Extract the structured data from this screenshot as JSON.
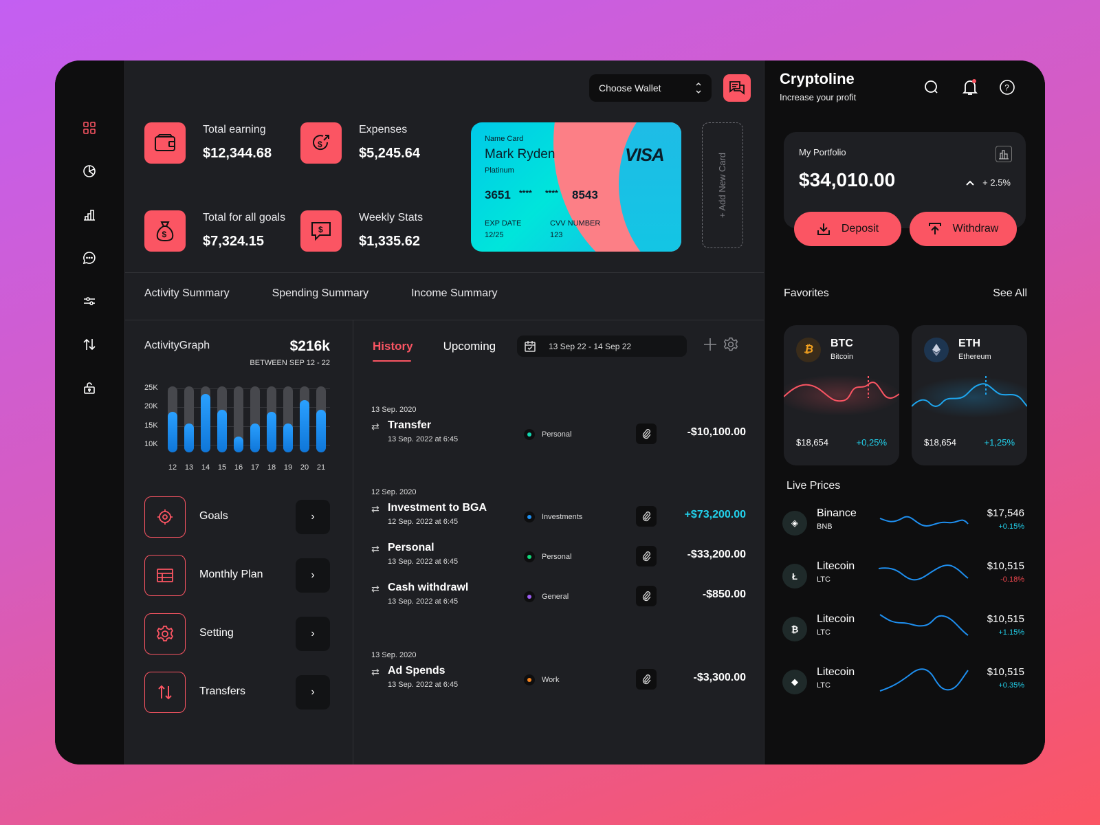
{
  "colors": {
    "accent": "#fb5563",
    "positive": "#22d3ee",
    "negative": "#f0474e",
    "bar": "#1e8ff0",
    "bar_track": "#47484d"
  },
  "topbar": {
    "wallet_select": "Choose Wallet"
  },
  "stats": [
    {
      "label": "Total earning",
      "value": "$12,344.68",
      "icon": "wallet-icon"
    },
    {
      "label": "Expenses",
      "value": "$5,245.64",
      "icon": "dollar-growth-icon"
    },
    {
      "label": "Total for all goals",
      "value": "$7,324.15",
      "icon": "money-bag-icon"
    },
    {
      "label": "Weekly Stats",
      "value": "$1,335.62",
      "icon": "dollar-chat-icon"
    }
  ],
  "card": {
    "name_label": "Name Card",
    "name": "Mark Ryden",
    "tier": "Platinum",
    "num1": "3651",
    "num2": "****",
    "num3": "****",
    "num4": "8543",
    "brand": "VISA",
    "exp_label": "EXP DATE",
    "exp": "12/25",
    "cvv_label": "CVV NUMBER",
    "cvv": "123"
  },
  "add_card": "+ Add New Card",
  "tabs": [
    "Activity Summary",
    "Spending Summary",
    "Income Summary"
  ],
  "activity": {
    "title": "ActivityGraph",
    "total": "$216k",
    "range": "BETWEEN SEP 12 - 22"
  },
  "chart_data": {
    "type": "bar",
    "title": "ActivityGraph",
    "categories": [
      "12",
      "13",
      "14",
      "15",
      "16",
      "17",
      "18",
      "19",
      "20",
      "21"
    ],
    "values": [
      18.5,
      15.5,
      23,
      19,
      12,
      15.5,
      18.5,
      15.5,
      21.5,
      19
    ],
    "unit": "K",
    "yticks": [
      "25K",
      "20K",
      "15K",
      "10K"
    ],
    "ylim": [
      8,
      25
    ],
    "xlabel": "",
    "ylabel": "",
    "grid": true
  },
  "menu": [
    {
      "label": "Goals",
      "icon": "target-icon"
    },
    {
      "label": "Monthly Plan",
      "icon": "table-icon"
    },
    {
      "label": "Setting",
      "icon": "gear-icon"
    },
    {
      "label": "Transfers",
      "icon": "transfer-arrows-icon"
    }
  ],
  "history": {
    "tabs": [
      "History",
      "Upcoming"
    ],
    "date_range": "13 Sep 22 - 14 Sep 22",
    "groups": [
      {
        "date": "13 Sep. 2020",
        "items": [
          {
            "title": "Transfer",
            "sub": "13  Sep. 2022 at 6:45",
            "category": "Personal",
            "dot": "#12d6b0",
            "amount": "-$10,100.00",
            "positive": false
          }
        ]
      },
      {
        "date": "12 Sep. 2020",
        "items": [
          {
            "title": "Investment to BGA",
            "sub": "12  Sep. 2022 at 6:45",
            "category": "Investments",
            "dot": "#1e8ff0",
            "amount": "+$73,200.00",
            "positive": true
          },
          {
            "title": "Personal",
            "sub": "13  Sep. 2022 at 6:45",
            "category": "Personal",
            "dot": "#12d67a",
            "amount": "-$33,200.00",
            "positive": false
          },
          {
            "title": "Cash withdrawl",
            "sub": "13  Sep. 2022 at 6:45",
            "category": "General",
            "dot": "#9b5cf0",
            "amount": "-$850.00",
            "positive": false
          }
        ]
      },
      {
        "date": "13 Sep. 2020",
        "items": [
          {
            "title": "Ad Spends",
            "sub": "13  Sep. 2022 at 6:45",
            "category": "Work",
            "dot": "#f5831f",
            "amount": "-$3,300.00",
            "positive": false
          }
        ]
      }
    ]
  },
  "brand": {
    "name": "Cryptoline",
    "tagline": "Increase your profit"
  },
  "portfolio": {
    "label": "My Portfolio",
    "value": "$34,010.00",
    "change": "+ 2.5%",
    "deposit": "Deposit",
    "withdraw": "Withdraw"
  },
  "favorites": {
    "title": "Favorites",
    "see_all": "See All",
    "items": [
      {
        "sym": "BTC",
        "name": "Bitcoin",
        "price": "$18,654",
        "change": "+0,25%"
      },
      {
        "sym": "ETH",
        "name": "Ethereum",
        "price": "$18,654",
        "change": "+1,25%"
      }
    ]
  },
  "live": {
    "title": "Live Prices",
    "items": [
      {
        "name": "Binance",
        "sym": "BNB",
        "price": "$17,546",
        "change": "+0.15%",
        "positive": true,
        "glyph": "◈"
      },
      {
        "name": "Litecoin",
        "sym": "LTC",
        "price": "$10,515",
        "change": "-0.18%",
        "positive": false,
        "glyph": "Ł"
      },
      {
        "name": "Litecoin",
        "sym": "LTC",
        "price": "$10,515",
        "change": "+1.15%",
        "positive": true,
        "glyph": "₿"
      },
      {
        "name": "Litecoin",
        "sym": "LTC",
        "price": "$10,515",
        "change": "+0.35%",
        "positive": true,
        "glyph": "◆"
      }
    ]
  }
}
